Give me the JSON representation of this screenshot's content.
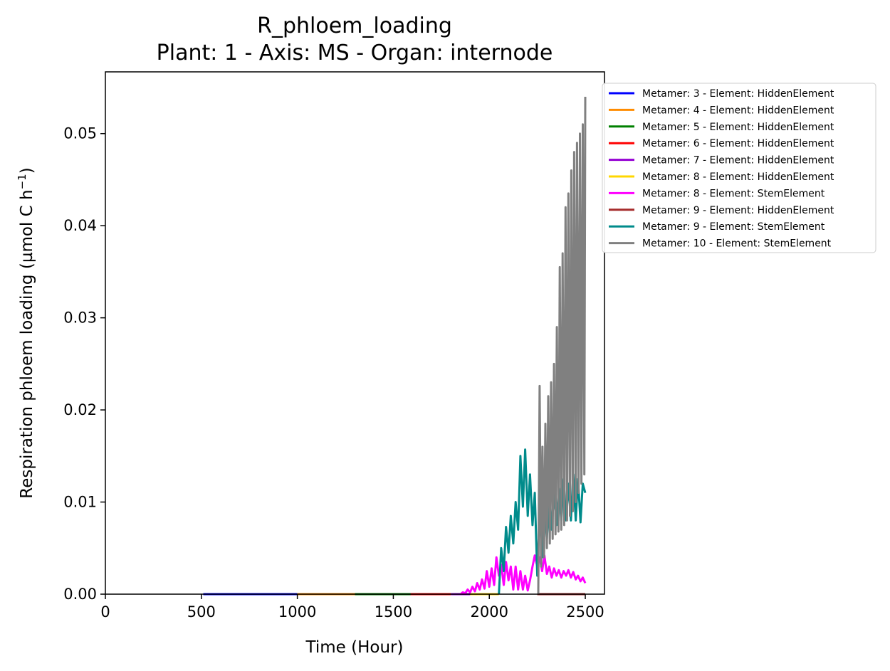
{
  "chart_data": {
    "type": "line",
    "title": "R_phloem_loading",
    "subtitle": "Plant: 1 - Axis: MS - Organ: internode",
    "xlabel": "Time (Hour)",
    "ylabel_main": "Respiration phloem loading (µmol C h",
    "ylabel_sup": "−1",
    "ylabel_end": ")",
    "xlim": [
      0,
      2600
    ],
    "ylim": [
      0,
      0.0567
    ],
    "xticks": [
      0,
      500,
      1000,
      1500,
      2000,
      2500
    ],
    "xtick_labels": [
      "0",
      "500",
      "1000",
      "1500",
      "2000",
      "2500"
    ],
    "yticks": [
      0,
      0.01,
      0.02,
      0.03,
      0.04,
      0.05
    ],
    "ytick_labels": [
      "0.00",
      "0.01",
      "0.02",
      "0.03",
      "0.04",
      "0.05"
    ],
    "grid": false,
    "legend_position": "outside-top-right",
    "series": [
      {
        "name": "Metamer: 3 - Element: HiddenElement",
        "color": "#0000ff",
        "x": [
          510,
          1000
        ],
        "y": [
          0,
          0
        ]
      },
      {
        "name": "Metamer: 4 - Element: HiddenElement",
        "color": "#ff8c00",
        "x": [
          1000,
          1300
        ],
        "y": [
          0,
          0
        ]
      },
      {
        "name": "Metamer: 5 - Element: HiddenElement",
        "color": "#008000",
        "x": [
          1300,
          1600
        ],
        "y": [
          0,
          0
        ]
      },
      {
        "name": "Metamer: 6 - Element: HiddenElement",
        "color": "#ff0000",
        "x": [
          1590,
          1800
        ],
        "y": [
          0,
          0
        ]
      },
      {
        "name": "Metamer: 7 - Element: HiddenElement",
        "color": "#9400d3",
        "x": [
          1800,
          2000
        ],
        "y": [
          0,
          0
        ]
      },
      {
        "name": "Metamer: 8 - Element: HiddenElement",
        "color": "#ffd700",
        "x": [
          1900,
          2050
        ],
        "y": [
          0,
          0
        ]
      },
      {
        "name": "Metamer: 8 - Element: StemElement",
        "color": "#ff00ff",
        "x": [
          1850,
          1862,
          1875,
          1887,
          1900,
          1912,
          1925,
          1937,
          1950,
          1962,
          1975,
          1987,
          2000,
          2012,
          2025,
          2037,
          2050,
          2062,
          2075,
          2087,
          2100,
          2112,
          2125,
          2137,
          2150,
          2162,
          2175,
          2187,
          2200,
          2212,
          2225,
          2237,
          2250,
          2262,
          2275,
          2287,
          2300,
          2312,
          2325,
          2337,
          2350,
          2362,
          2375,
          2387,
          2400,
          2412,
          2425,
          2437,
          2450,
          2462,
          2475,
          2487,
          2500
        ],
        "y": [
          0,
          0.0002,
          0.0001,
          0.0005,
          0.0002,
          0.0008,
          0.0003,
          0.0012,
          0.0005,
          0.0016,
          0.0006,
          0.0025,
          0.0008,
          0.0028,
          0.001,
          0.004,
          0.002,
          0.0032,
          0.001,
          0.0035,
          0.0015,
          0.003,
          0.0005,
          0.003,
          0.0005,
          0.0025,
          0.0005,
          0.002,
          0.0004,
          0.0015,
          0.003,
          0.0042,
          0.003,
          0.004,
          0.0025,
          0.0042,
          0.0022,
          0.003,
          0.0018,
          0.0028,
          0.002,
          0.0026,
          0.0018,
          0.0025,
          0.002,
          0.0026,
          0.0018,
          0.0024,
          0.0016,
          0.002,
          0.0014,
          0.0018,
          0.0012
        ]
      },
      {
        "name": "Metamer: 9 - Element: HiddenElement",
        "color": "#a52a2a",
        "x": [
          2250,
          2500
        ],
        "y": [
          0,
          0
        ]
      },
      {
        "name": "Metamer: 9 - Element: StemElement",
        "color": "#008b8b",
        "x": [
          2050,
          2062,
          2075,
          2087,
          2100,
          2112,
          2125,
          2137,
          2150,
          2162,
          2175,
          2187,
          2200,
          2212,
          2225,
          2237,
          2250,
          2262,
          2275,
          2287,
          2300,
          2312,
          2325,
          2337,
          2350,
          2362,
          2375,
          2387,
          2400,
          2412,
          2425,
          2437,
          2450,
          2462,
          2475,
          2487,
          2500
        ],
        "y": [
          0,
          0.005,
          0.0025,
          0.0073,
          0.0045,
          0.0085,
          0.0055,
          0.01,
          0.007,
          0.015,
          0.0095,
          0.0157,
          0.0085,
          0.013,
          0.0075,
          0.011,
          0.002,
          0.009,
          0.004,
          0.01,
          0.006,
          0.0105,
          0.007,
          0.011,
          0.0075,
          0.0115,
          0.008,
          0.0125,
          0.008,
          0.012,
          0.008,
          0.013,
          0.008,
          0.0125,
          0.0078,
          0.012,
          0.011
        ]
      },
      {
        "name": "Metamer: 10 - Element: StemElement",
        "color": "#808080",
        "x": [
          2255,
          2262,
          2270,
          2277,
          2285,
          2292,
          2300,
          2307,
          2315,
          2322,
          2330,
          2337,
          2345,
          2352,
          2360,
          2367,
          2375,
          2382,
          2390,
          2397,
          2405,
          2412,
          2420,
          2427,
          2435,
          2442,
          2450,
          2457,
          2465,
          2472,
          2480,
          2487,
          2495,
          2500
        ],
        "y": [
          0,
          0.0226,
          0.003,
          0.016,
          0.004,
          0.0185,
          0.005,
          0.0215,
          0.0055,
          0.023,
          0.006,
          0.025,
          0.0065,
          0.029,
          0.0068,
          0.0355,
          0.007,
          0.037,
          0.0075,
          0.042,
          0.008,
          0.0435,
          0.0085,
          0.046,
          0.009,
          0.048,
          0.01,
          0.049,
          0.011,
          0.05,
          0.012,
          0.051,
          0.013,
          0.054
        ]
      }
    ]
  }
}
